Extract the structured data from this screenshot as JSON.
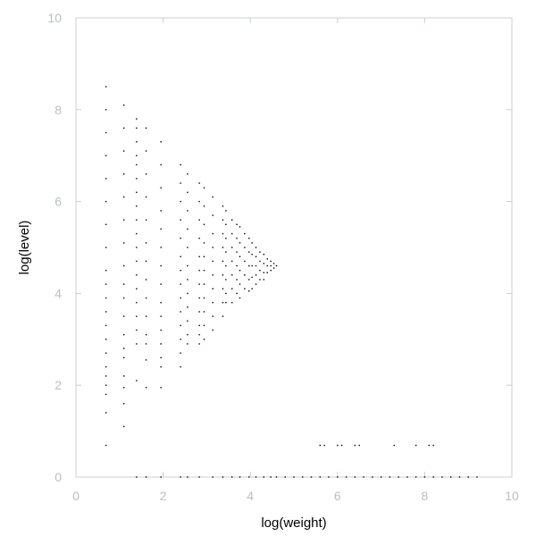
{
  "chart_data": {
    "type": "scatter",
    "title": "",
    "xlabel": "log(weight)",
    "ylabel": "log(level)",
    "xlim": [
      0,
      10
    ],
    "ylim": [
      0,
      10
    ],
    "xticks": [
      "0",
      "2",
      "4",
      "6",
      "8",
      "10"
    ],
    "yticks": [
      "0",
      "2",
      "4",
      "6",
      "8",
      "10"
    ],
    "grid": false,
    "legend": "none",
    "colors": {
      "points": "#000000",
      "frame": "#c8d0d4",
      "tick_text": "#b8c0c4"
    },
    "series": [
      {
        "points": [
          [
            0.69,
            8.5
          ],
          [
            0.69,
            8.0
          ],
          [
            0.69,
            7.5
          ],
          [
            0.69,
            7.0
          ],
          [
            0.69,
            6.5
          ],
          [
            0.69,
            6.0
          ],
          [
            0.69,
            5.5
          ],
          [
            0.69,
            5.0
          ],
          [
            0.69,
            4.5
          ],
          [
            0.69,
            4.2
          ],
          [
            0.69,
            3.9
          ],
          [
            0.69,
            3.6
          ],
          [
            0.69,
            3.3
          ],
          [
            0.69,
            3.0
          ],
          [
            0.69,
            2.7
          ],
          [
            0.69,
            2.4
          ],
          [
            0.69,
            2.2
          ],
          [
            0.69,
            2.0
          ],
          [
            0.69,
            1.8
          ],
          [
            0.69,
            1.4
          ],
          [
            0.69,
            0.69
          ],
          [
            1.1,
            8.1
          ],
          [
            1.1,
            7.6
          ],
          [
            1.1,
            7.1
          ],
          [
            1.1,
            6.6
          ],
          [
            1.1,
            6.1
          ],
          [
            1.1,
            5.6
          ],
          [
            1.1,
            5.1
          ],
          [
            1.1,
            4.6
          ],
          [
            1.1,
            4.2
          ],
          [
            1.1,
            3.9
          ],
          [
            1.1,
            3.5
          ],
          [
            1.1,
            3.1
          ],
          [
            1.1,
            2.8
          ],
          [
            1.1,
            2.6
          ],
          [
            1.1,
            2.2
          ],
          [
            1.1,
            1.95
          ],
          [
            1.1,
            1.6
          ],
          [
            1.1,
            1.1
          ],
          [
            1.39,
            7.8
          ],
          [
            1.39,
            7.6
          ],
          [
            1.39,
            7.3
          ],
          [
            1.39,
            7.0
          ],
          [
            1.39,
            6.8
          ],
          [
            1.39,
            6.5
          ],
          [
            1.39,
            6.2
          ],
          [
            1.39,
            5.9
          ],
          [
            1.39,
            5.6
          ],
          [
            1.39,
            5.3
          ],
          [
            1.39,
            5.0
          ],
          [
            1.39,
            4.7
          ],
          [
            1.39,
            4.4
          ],
          [
            1.39,
            4.1
          ],
          [
            1.39,
            3.8
          ],
          [
            1.39,
            3.5
          ],
          [
            1.39,
            3.2
          ],
          [
            1.39,
            2.9
          ],
          [
            1.39,
            2.1
          ],
          [
            1.61,
            7.6
          ],
          [
            1.61,
            7.1
          ],
          [
            1.61,
            6.6
          ],
          [
            1.61,
            6.1
          ],
          [
            1.61,
            5.6
          ],
          [
            1.61,
            5.1
          ],
          [
            1.61,
            4.7
          ],
          [
            1.61,
            4.3
          ],
          [
            1.61,
            3.9
          ],
          [
            1.61,
            3.5
          ],
          [
            1.61,
            3.1
          ],
          [
            1.61,
            2.9
          ],
          [
            1.61,
            2.55
          ],
          [
            1.61,
            1.95
          ],
          [
            1.95,
            7.3
          ],
          [
            1.95,
            6.8
          ],
          [
            1.95,
            6.3
          ],
          [
            1.95,
            5.8
          ],
          [
            1.95,
            5.4
          ],
          [
            1.95,
            5.0
          ],
          [
            1.95,
            4.6
          ],
          [
            1.95,
            4.2
          ],
          [
            1.95,
            3.8
          ],
          [
            1.95,
            3.5
          ],
          [
            1.95,
            3.2
          ],
          [
            1.95,
            2.9
          ],
          [
            1.95,
            2.6
          ],
          [
            1.95,
            2.4
          ],
          [
            1.95,
            1.95
          ],
          [
            2.4,
            6.8
          ],
          [
            2.4,
            6.4
          ],
          [
            2.4,
            6.0
          ],
          [
            2.4,
            5.6
          ],
          [
            2.4,
            5.2
          ],
          [
            2.4,
            4.8
          ],
          [
            2.4,
            4.5
          ],
          [
            2.4,
            4.2
          ],
          [
            2.4,
            3.9
          ],
          [
            2.4,
            3.6
          ],
          [
            2.4,
            3.3
          ],
          [
            2.4,
            3.0
          ],
          [
            2.4,
            2.7
          ],
          [
            2.4,
            2.4
          ],
          [
            2.56,
            6.6
          ],
          [
            2.56,
            6.2
          ],
          [
            2.56,
            5.8
          ],
          [
            2.56,
            5.4
          ],
          [
            2.56,
            5.0
          ],
          [
            2.56,
            4.6
          ],
          [
            2.56,
            4.3
          ],
          [
            2.56,
            4.0
          ],
          [
            2.56,
            3.7
          ],
          [
            2.56,
            3.4
          ],
          [
            2.56,
            3.1
          ],
          [
            2.56,
            2.9
          ],
          [
            2.83,
            6.4
          ],
          [
            2.83,
            6.0
          ],
          [
            2.83,
            5.6
          ],
          [
            2.83,
            5.2
          ],
          [
            2.83,
            4.8
          ],
          [
            2.83,
            4.5
          ],
          [
            2.83,
            4.2
          ],
          [
            2.83,
            3.9
          ],
          [
            2.83,
            3.6
          ],
          [
            2.83,
            3.3
          ],
          [
            2.83,
            3.1
          ],
          [
            2.83,
            2.9
          ],
          [
            2.94,
            6.3
          ],
          [
            2.94,
            5.9
          ],
          [
            2.94,
            5.5
          ],
          [
            2.94,
            5.1
          ],
          [
            2.94,
            4.8
          ],
          [
            2.94,
            4.5
          ],
          [
            2.94,
            4.2
          ],
          [
            2.94,
            3.9
          ],
          [
            2.94,
            3.6
          ],
          [
            2.94,
            3.3
          ],
          [
            2.94,
            3.0
          ],
          [
            3.14,
            6.1
          ],
          [
            3.14,
            5.7
          ],
          [
            3.14,
            5.3
          ],
          [
            3.14,
            5.0
          ],
          [
            3.14,
            4.7
          ],
          [
            3.14,
            4.4
          ],
          [
            3.14,
            4.1
          ],
          [
            3.14,
            3.8
          ],
          [
            3.14,
            3.5
          ],
          [
            3.14,
            3.2
          ],
          [
            3.37,
            5.9
          ],
          [
            3.37,
            5.6
          ],
          [
            3.37,
            5.3
          ],
          [
            3.37,
            5.0
          ],
          [
            3.37,
            4.7
          ],
          [
            3.37,
            4.4
          ],
          [
            3.37,
            4.1
          ],
          [
            3.37,
            3.8
          ],
          [
            3.37,
            3.5
          ],
          [
            3.44,
            5.8
          ],
          [
            3.44,
            5.5
          ],
          [
            3.44,
            5.2
          ],
          [
            3.44,
            4.9
          ],
          [
            3.44,
            4.6
          ],
          [
            3.44,
            4.3
          ],
          [
            3.44,
            4.0
          ],
          [
            3.44,
            3.8
          ],
          [
            3.58,
            5.6
          ],
          [
            3.58,
            5.3
          ],
          [
            3.58,
            5.0
          ],
          [
            3.58,
            4.7
          ],
          [
            3.58,
            4.4
          ],
          [
            3.58,
            4.1
          ],
          [
            3.58,
            3.8
          ],
          [
            3.69,
            5.5
          ],
          [
            3.69,
            5.2
          ],
          [
            3.69,
            4.9
          ],
          [
            3.69,
            4.6
          ],
          [
            3.69,
            4.3
          ],
          [
            3.69,
            4.0
          ],
          [
            3.76,
            5.45
          ],
          [
            3.76,
            5.1
          ],
          [
            3.76,
            4.8
          ],
          [
            3.76,
            4.5
          ],
          [
            3.76,
            4.2
          ],
          [
            3.76,
            3.9
          ],
          [
            3.87,
            5.3
          ],
          [
            3.87,
            5.0
          ],
          [
            3.87,
            4.7
          ],
          [
            3.87,
            4.4
          ],
          [
            3.87,
            4.1
          ],
          [
            3.97,
            5.2
          ],
          [
            3.97,
            4.9
          ],
          [
            3.97,
            4.6
          ],
          [
            3.97,
            4.3
          ],
          [
            3.97,
            4.05
          ],
          [
            4.04,
            5.1
          ],
          [
            4.04,
            4.85
          ],
          [
            4.04,
            4.6
          ],
          [
            4.04,
            4.35
          ],
          [
            4.04,
            4.1
          ],
          [
            4.13,
            5.0
          ],
          [
            4.13,
            4.8
          ],
          [
            4.13,
            4.6
          ],
          [
            4.13,
            4.4
          ],
          [
            4.13,
            4.2
          ],
          [
            4.22,
            4.9
          ],
          [
            4.22,
            4.7
          ],
          [
            4.22,
            4.5
          ],
          [
            4.22,
            4.3
          ],
          [
            4.31,
            4.85
          ],
          [
            4.31,
            4.65
          ],
          [
            4.31,
            4.45
          ],
          [
            4.31,
            4.3
          ],
          [
            4.39,
            4.75
          ],
          [
            4.39,
            4.6
          ],
          [
            4.39,
            4.45
          ],
          [
            4.47,
            4.7
          ],
          [
            4.47,
            4.6
          ],
          [
            4.47,
            4.5
          ],
          [
            4.54,
            4.65
          ],
          [
            4.54,
            4.55
          ],
          [
            4.6,
            4.6
          ],
          [
            5.6,
            0.69
          ],
          [
            5.7,
            0.69
          ],
          [
            6.0,
            0.69
          ],
          [
            6.1,
            0.69
          ],
          [
            6.4,
            0.69
          ],
          [
            6.5,
            0.69
          ],
          [
            7.3,
            0.69
          ],
          [
            7.8,
            0.69
          ],
          [
            8.1,
            0.69
          ],
          [
            8.2,
            0.69
          ],
          [
            1.39,
            0
          ],
          [
            1.61,
            0
          ],
          [
            1.95,
            0
          ],
          [
            2.4,
            0
          ],
          [
            2.56,
            0
          ],
          [
            2.83,
            0
          ],
          [
            3.14,
            0
          ],
          [
            3.37,
            0
          ],
          [
            3.58,
            0
          ],
          [
            3.76,
            0
          ],
          [
            3.97,
            0
          ],
          [
            4.13,
            0
          ],
          [
            4.31,
            0
          ],
          [
            4.47,
            0
          ],
          [
            4.6,
            0
          ],
          [
            4.8,
            0
          ],
          [
            5.0,
            0
          ],
          [
            5.2,
            0
          ],
          [
            5.4,
            0
          ],
          [
            5.6,
            0
          ],
          [
            5.8,
            0
          ],
          [
            6.0,
            0
          ],
          [
            6.2,
            0
          ],
          [
            6.4,
            0
          ],
          [
            6.6,
            0
          ],
          [
            6.8,
            0
          ],
          [
            7.0,
            0
          ],
          [
            7.2,
            0
          ],
          [
            7.4,
            0
          ],
          [
            7.6,
            0
          ],
          [
            7.8,
            0
          ],
          [
            8.0,
            0
          ],
          [
            8.2,
            0
          ],
          [
            8.4,
            0
          ],
          [
            8.6,
            0
          ],
          [
            8.8,
            0
          ],
          [
            9.0,
            0
          ],
          [
            9.2,
            0
          ]
        ]
      }
    ]
  }
}
